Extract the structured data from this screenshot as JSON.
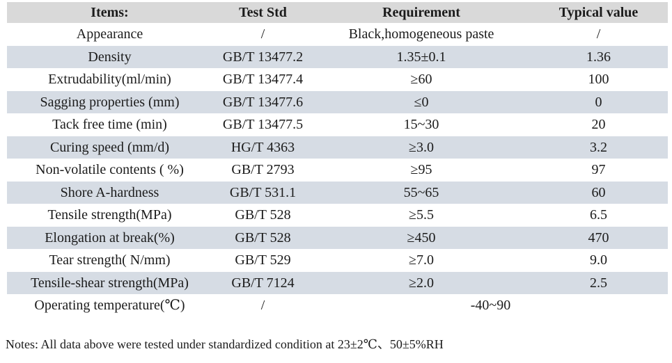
{
  "table": {
    "columns": [
      "Items:",
      "Test Std",
      "Requirement",
      "Typical value"
    ],
    "rows": [
      {
        "item": "Appearance",
        "std": "/",
        "req": "Black,homogeneous paste",
        "typ": "/"
      },
      {
        "item": "Density",
        "std": "GB/T 13477.2",
        "req": "1.35±0.1",
        "typ": "1.36"
      },
      {
        "item": "Extrudability(ml/min)",
        "std": "GB/T 13477.4",
        "req": "≥60",
        "typ": "100"
      },
      {
        "item": "Sagging properties (mm)",
        "std": "GB/T 13477.6",
        "req": "≤0",
        "typ": "0"
      },
      {
        "item": "Tack free time (min)",
        "std": "GB/T 13477.5",
        "req": "15~30",
        "typ": "20"
      },
      {
        "item": "Curing speed (mm/d)",
        "std": "HG/T 4363",
        "req": "≥3.0",
        "typ": "3.2"
      },
      {
        "item": "Non-volatile contents ( %)",
        "std": "GB/T 2793",
        "req": "≥95",
        "typ": "97"
      },
      {
        "item": "Shore A-hardness",
        "std": "GB/T 531.1",
        "req": "55~65",
        "typ": "60"
      },
      {
        "item": "Tensile strength(MPa)",
        "std": "GB/T 528",
        "req": "≥5.5",
        "typ": "6.5"
      },
      {
        "item": "Elongation at break(%)",
        "std": "GB/T 528",
        "req": "≥450",
        "typ": "470"
      },
      {
        "item": "Tear strength( N/mm)",
        "std": "GB/T 529",
        "req": "≥7.0",
        "typ": "9.0"
      },
      {
        "item": "Tensile-shear strength(MPa)",
        "std": "GB/T 7124",
        "req": "≥2.0",
        "typ": "2.5"
      },
      {
        "item": "Operating temperature(℃)",
        "std": "/",
        "req_span": "-40~90"
      }
    ]
  },
  "notes": "Notes: All data above were tested under standardized condition at 23±2℃、50±5%RH",
  "colors": {
    "header_bg": "#d9d9d9",
    "stripe_bg": "#d6dce4",
    "text": "#1b1b1b"
  }
}
